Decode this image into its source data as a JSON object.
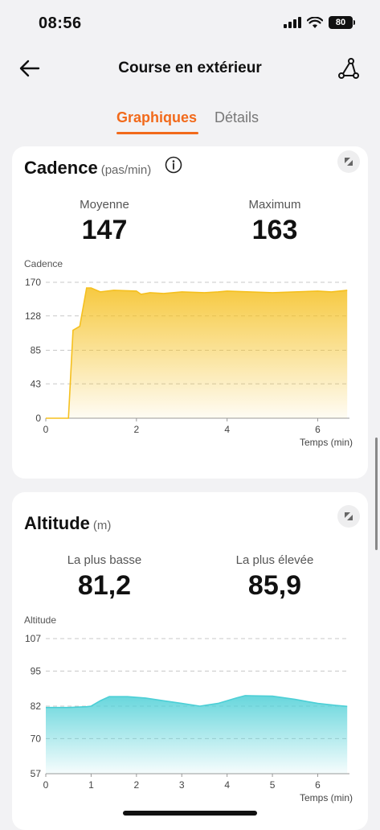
{
  "status_bar": {
    "time": "08:56",
    "battery": "80"
  },
  "nav": {
    "title": "Course en extérieur"
  },
  "tabs": [
    {
      "label": "Graphiques"
    },
    {
      "label": "Détails"
    }
  ],
  "cadence": {
    "title": "Cadence",
    "unit": "(pas/min)",
    "stat1": {
      "label": "Moyenne",
      "value": "147"
    },
    "stat2": {
      "label": "Maximum",
      "value": "163"
    },
    "chart_label": "Cadence",
    "x_axis_title": "Temps (min)"
  },
  "altitude": {
    "title": "Altitude",
    "unit": "(m)",
    "stat1": {
      "label": "La plus basse",
      "value": "81,2"
    },
    "stat2": {
      "label": "La plus élevée",
      "value": "85,9"
    },
    "chart_label": "Altitude",
    "x_axis_title": "Temps (min)"
  },
  "chart_data": [
    {
      "type": "area",
      "title": "",
      "ylabel": "Cadence",
      "xlabel": "Temps (min)",
      "ylim": [
        0,
        170
      ],
      "xlim": [
        0,
        6.7
      ],
      "yticks": [
        0,
        43,
        85,
        128,
        170
      ],
      "xticks": [
        0,
        2,
        4,
        6
      ],
      "color": "#f5c01f",
      "series": [
        {
          "x": [
            0,
            0.5,
            0.6,
            0.75,
            0.9,
            1.0,
            1.2,
            1.5,
            2.0,
            2.1,
            2.3,
            2.6,
            3.0,
            3.5,
            3.8,
            4.0,
            4.5,
            5.0,
            5.5,
            6.0,
            6.3,
            6.65
          ],
          "y": [
            0,
            0,
            110,
            115,
            163,
            163,
            158,
            160,
            159,
            155,
            157,
            156,
            158,
            157,
            158,
            159,
            158,
            157,
            158,
            159,
            158,
            160
          ]
        }
      ]
    },
    {
      "type": "area",
      "title": "",
      "ylabel": "Altitude",
      "xlabel": "Temps (min)",
      "ylim": [
        57,
        107
      ],
      "xlim": [
        0,
        6.7
      ],
      "yticks": [
        57,
        70,
        82,
        95,
        107
      ],
      "xticks": [
        0,
        1,
        2,
        3,
        4,
        5,
        6
      ],
      "color": "#4ccfd6",
      "series": [
        {
          "x": [
            0,
            0.5,
            0.9,
            1.0,
            1.2,
            1.4,
            1.8,
            2.2,
            2.6,
            3.0,
            3.4,
            3.8,
            4.2,
            4.4,
            4.6,
            5.0,
            5.5,
            6.0,
            6.4,
            6.65
          ],
          "y": [
            81.5,
            81.5,
            81.8,
            82.0,
            84.0,
            85.5,
            85.5,
            85.0,
            84.0,
            83.0,
            82.0,
            83.0,
            85.0,
            85.9,
            85.8,
            85.7,
            84.5,
            83.0,
            82.3,
            81.9
          ]
        }
      ]
    }
  ]
}
